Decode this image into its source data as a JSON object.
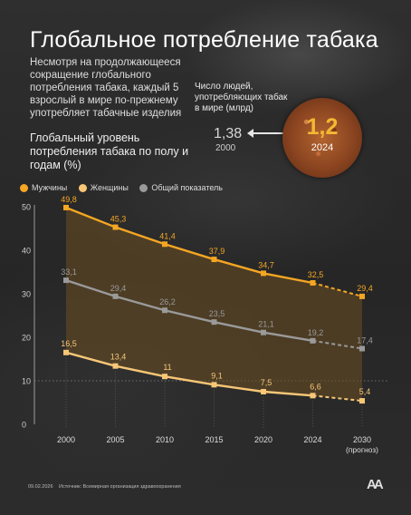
{
  "header": {
    "title": "Глобальное потребление табака",
    "intro": "Несмотря на продолжающееся сокращение глобального потребления табака, каждый 5 взрослый в мире по-прежнему употребляет табачные изделия",
    "subtitle": "Глобальный уровень потребления табака по полу и годам (%)"
  },
  "stat": {
    "label": "Число людей, употребляющих табак в мире (млрд)",
    "previous_value": "1,38",
    "previous_year": "2000",
    "current_value": "1,2",
    "current_year": "2024"
  },
  "colors": {
    "men": "#f5a623",
    "women": "#f7c777",
    "total": "#9a9a9a",
    "men_forecast_label": "#f5a623"
  },
  "chart_data": {
    "type": "line",
    "categories": [
      "2000",
      "2005",
      "2010",
      "2015",
      "2020",
      "2024",
      "2030"
    ],
    "x_sublabels": [
      "",
      "",
      "",
      "",
      "",
      "",
      "(прогноз)"
    ],
    "y_ticks": [
      "0",
      "10",
      "20",
      "30",
      "40",
      "50"
    ],
    "ylim": [
      0,
      50
    ],
    "forecast_from_index": 5,
    "series": [
      {
        "name": "Мужчины",
        "key": "men",
        "values": [
          49.8,
          45.3,
          41.4,
          37.9,
          34.7,
          32.5,
          29.4
        ],
        "labels": [
          "49,8",
          "45,3",
          "41,4",
          "37,9",
          "34,7",
          "32,5",
          "29,4"
        ]
      },
      {
        "name": "Женщины",
        "key": "women",
        "values": [
          16.5,
          13.4,
          11,
          9.1,
          7.5,
          6.6,
          5.4
        ],
        "labels": [
          "16,5",
          "13,4",
          "11",
          "9,1",
          "7,5",
          "6,6",
          "5,4"
        ]
      },
      {
        "name": "Общий показатель",
        "key": "total",
        "values": [
          33.1,
          29.4,
          26.2,
          23.5,
          21.1,
          19.2,
          17.4
        ],
        "labels": [
          "33,1",
          "29,4",
          "26,2",
          "23,5",
          "21,1",
          "19,2",
          "17,4"
        ]
      }
    ]
  },
  "footer": {
    "date": "09.02.2026",
    "source": "Источник: Всемирная организация здравоохранения",
    "logo": "AA"
  }
}
